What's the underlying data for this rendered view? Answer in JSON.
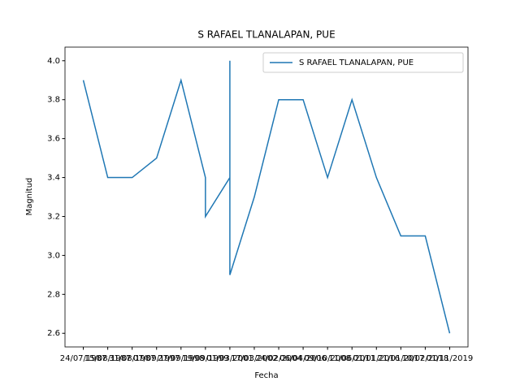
{
  "chart_data": {
    "type": "line",
    "title": "S RAFAEL TLANALAPAN, PUE",
    "x_label": "Fecha",
    "y_label": "Magnitud",
    "x": [
      "24/07/1987",
      "15/08/1987",
      "31/08/1987",
      "07/09/1997",
      "27/09/1998",
      "19/09/1999",
      "19/09/1999",
      "01/03/2001",
      "01/03/2001",
      "01/03/2001",
      "17/03/2002",
      "24/02/2004",
      "06/04/2006",
      "09/10/2008",
      "11/06/2011",
      "01/01/2016",
      "21/01/2017",
      "10/02/2018",
      "01/11/2019"
    ],
    "series": [
      {
        "name": "S RAFAEL TLANALAPAN, PUE",
        "color": "#1f77b4",
        "values": [
          3.9,
          3.4,
          3.4,
          3.5,
          3.9,
          3.4,
          3.2,
          3.4,
          4.0,
          2.9,
          3.3,
          3.8,
          3.8,
          3.4,
          3.8,
          3.4,
          3.1,
          3.1,
          2.6
        ]
      }
    ],
    "ylim": [
      2.53,
      4.07
    ],
    "yticks": [
      2.6,
      2.8,
      {
        "value": 3.0,
        "label": "3.0"
      },
      3.2,
      3.4,
      3.6,
      3.8,
      {
        "value": 4.0,
        "label": "4.0"
      }
    ],
    "legend": "upper right"
  }
}
